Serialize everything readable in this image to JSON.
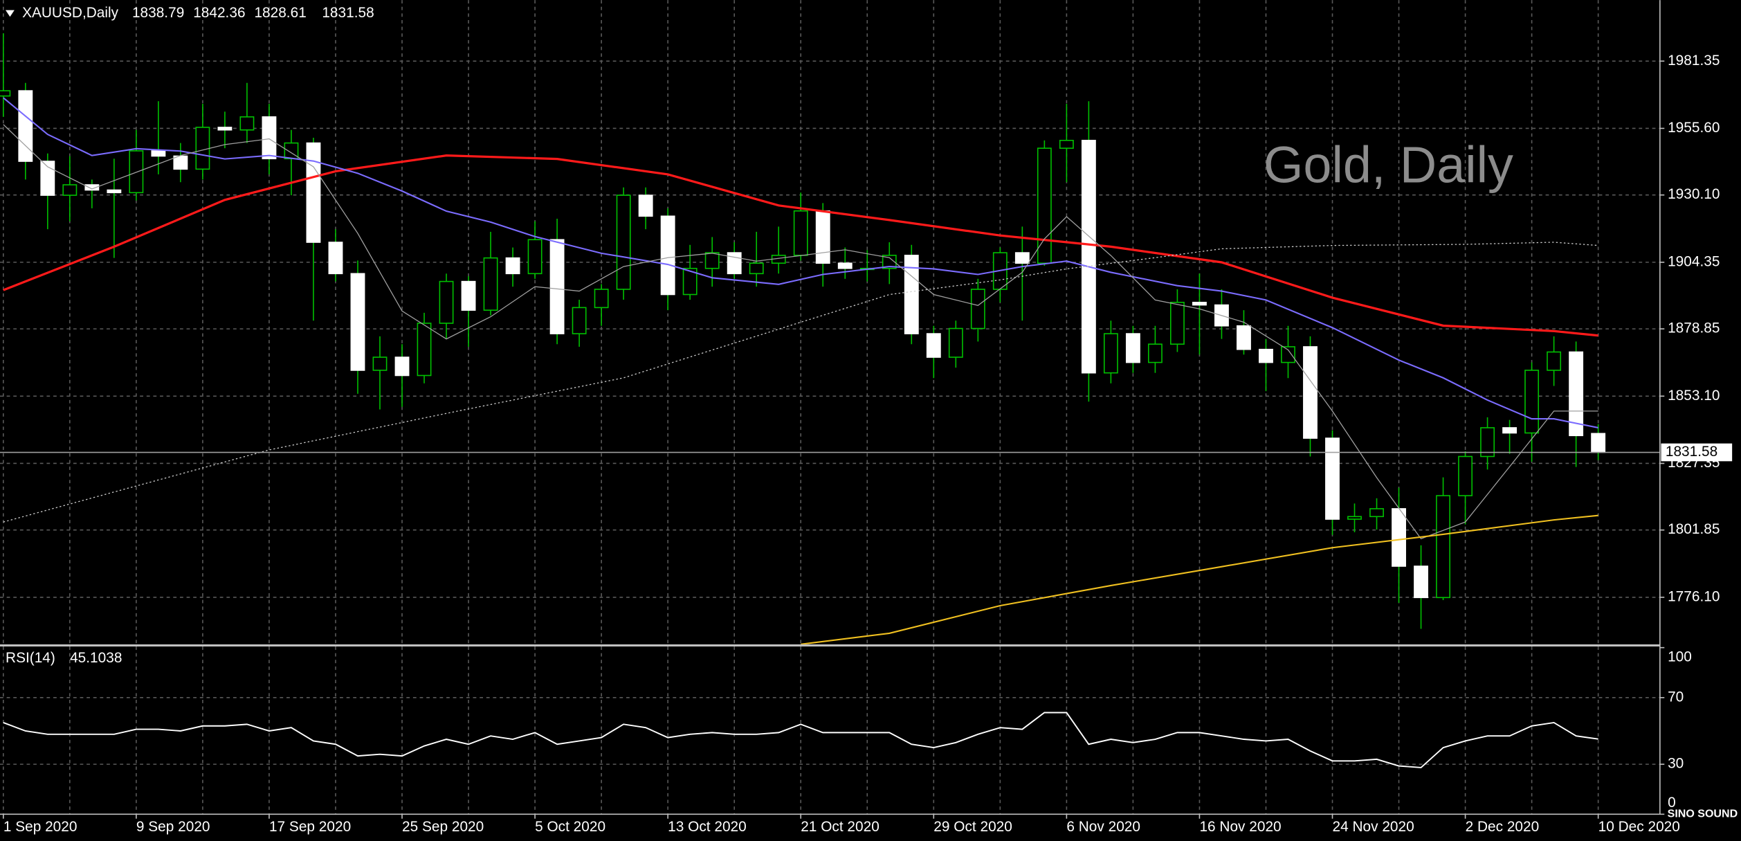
{
  "chart_data": {
    "type": "candlestick",
    "symbol": "XAUUSD,Daily",
    "watermark": "Gold, Daily",
    "logo": "SINO SOUND",
    "last_price": 1831.58,
    "categories": [
      "1 Sep 2020",
      null,
      null,
      null,
      null,
      null,
      "9 Sep 2020",
      null,
      null,
      null,
      null,
      null,
      "17 Sep 2020",
      null,
      null,
      null,
      null,
      null,
      "25 Sep 2020",
      null,
      null,
      null,
      null,
      null,
      "5 Oct 2020",
      null,
      null,
      null,
      null,
      null,
      "13 Oct 2020",
      null,
      null,
      null,
      null,
      null,
      "21 Oct 2020",
      null,
      null,
      null,
      null,
      null,
      "29 Oct 2020",
      null,
      null,
      null,
      null,
      null,
      "6 Nov 2020",
      null,
      null,
      null,
      null,
      null,
      "16 Nov 2020",
      null,
      null,
      null,
      null,
      null,
      "24 Nov 2020",
      null,
      null,
      null,
      null,
      null,
      "2 Dec 2020",
      null,
      null,
      null,
      null,
      null,
      "10 Dec 2020"
    ],
    "open": [
      1968,
      1970,
      1943,
      1930,
      1934,
      1932,
      1931,
      1947,
      1945,
      1940,
      1956,
      1955,
      1960,
      1944,
      1950,
      1912,
      1900,
      1863,
      1868,
      1861,
      1881,
      1897,
      1886,
      1906,
      1900,
      1913,
      1877,
      1887,
      1894,
      1930,
      1922,
      1892,
      1902,
      1908,
      1900,
      1904,
      1907,
      1924,
      1904,
      1902,
      1902,
      1907,
      1877,
      1868,
      1879,
      1894,
      1908,
      1904,
      1948,
      1951,
      1862,
      1877,
      1866,
      1873,
      1889,
      1888,
      1880,
      1871,
      1866,
      1872,
      1837,
      1806,
      1807,
      1810,
      1788,
      1776,
      1815,
      1830,
      1841,
      1839,
      1863,
      1870,
      1838.79
    ],
    "high": [
      1992,
      1973,
      1946,
      1945,
      1936,
      1944,
      1955,
      1966,
      1950,
      1965,
      1962,
      1973,
      1965,
      1955,
      1952,
      1917,
      1905,
      1876,
      1873,
      1885,
      1900,
      1899,
      1916,
      1910,
      1920,
      1921,
      1890,
      1896,
      1933,
      1933,
      1925,
      1911,
      1914,
      1912,
      1916,
      1918,
      1931,
      1927,
      1910,
      1909,
      1912,
      1911,
      1880,
      1882,
      1898,
      1910,
      1918,
      1951,
      1965,
      1966,
      1882,
      1880,
      1880,
      1894,
      1900,
      1894,
      1886,
      1875,
      1880,
      1876,
      1840,
      1812,
      1814,
      1818,
      1796,
      1822,
      1832,
      1845,
      1844,
      1866,
      1876,
      1874,
      1842.36
    ],
    "low": [
      1960,
      1936,
      1917,
      1920,
      1925,
      1906,
      1928,
      1938,
      1935,
      1936,
      1948,
      1950,
      1938,
      1930,
      1882,
      1897,
      1854,
      1848,
      1849,
      1858,
      1875,
      1872,
      1884,
      1895,
      1898,
      1873,
      1872,
      1880,
      1890,
      1917,
      1886,
      1890,
      1895,
      1898,
      1895,
      1900,
      1905,
      1895,
      1898,
      1897,
      1896,
      1873,
      1860,
      1864,
      1874,
      1889,
      1882,
      1903,
      1935,
      1851,
      1858,
      1862,
      1862,
      1870,
      1869,
      1875,
      1869,
      1855,
      1860,
      1830,
      1800,
      1801,
      1802,
      1774,
      1764,
      1775,
      1804,
      1825,
      1831,
      1828,
      1857,
      1826,
      1828.61
    ],
    "close": [
      1970,
      1943,
      1930,
      1934,
      1932,
      1931,
      1947,
      1945,
      1940,
      1956,
      1955,
      1960,
      1944,
      1950,
      1912,
      1900,
      1863,
      1868,
      1861,
      1881,
      1897,
      1886,
      1906,
      1900,
      1913,
      1877,
      1887,
      1894,
      1930,
      1922,
      1892,
      1902,
      1908,
      1900,
      1904,
      1907,
      1924,
      1904,
      1902,
      1902,
      1907,
      1877,
      1868,
      1879,
      1894,
      1908,
      1904,
      1948,
      1951,
      1862,
      1877,
      1866,
      1873,
      1889,
      1888,
      1880,
      1871,
      1866,
      1872,
      1837,
      1806,
      1807,
      1810,
      1788,
      1776,
      1815,
      1830,
      1841,
      1839,
      1863,
      1870,
      1838,
      1831.58
    ],
    "up_color": "#000000",
    "down_color": "#ffffff",
    "wick_color": "#00c000",
    "ylim": [
      1758.1,
      2004.7
    ],
    "yticks": [
      {
        "value": 1776.1,
        "label": "1776.10"
      },
      1801.85,
      1827.35,
      {
        "value": 1853.1,
        "label": "1853.10"
      },
      1878.85,
      1904.35,
      {
        "value": 1930.1,
        "label": "1930.10"
      },
      {
        "value": 1955.6,
        "label": "1955.60"
      },
      1981.35
    ],
    "grid": true,
    "overlays": [
      {
        "color": "#ff1a1a",
        "width": 2,
        "dash": "none",
        "x": [
          0,
          5,
          10,
          15,
          20,
          25,
          30,
          35,
          40,
          45,
          50,
          55,
          60,
          65,
          70,
          72
        ],
        "values": [
          1893.7,
          1910.3,
          1928.2,
          1939.2,
          1945.2,
          1943.9,
          1938.0,
          1926.1,
          1920.5,
          1914.6,
          1910.3,
          1904.3,
          1890.8,
          1880.1,
          1878.0,
          1876.3
        ]
      },
      {
        "color": "#7b6cff",
        "width": 1.3,
        "dash": "none",
        "x": [
          0,
          2,
          4,
          6,
          8,
          10,
          12,
          14,
          16,
          18,
          20,
          22,
          24,
          27,
          30,
          32,
          35,
          37,
          40,
          42,
          44,
          46,
          48,
          50,
          53,
          55,
          57,
          60,
          63,
          65,
          67,
          69,
          70,
          72
        ],
        "values": [
          1967.3,
          1953.3,
          1945.2,
          1947.8,
          1946.9,
          1943.9,
          1945.2,
          1943.1,
          1938.4,
          1931.6,
          1923.9,
          1919.7,
          1914.2,
          1907.8,
          1903.5,
          1898.4,
          1895.9,
          1899.7,
          1902.7,
          1901.8,
          1899.7,
          1902.7,
          1904.8,
          1900.5,
          1895.4,
          1893.3,
          1889.9,
          1879.3,
          1866.9,
          1860.1,
          1851.6,
          1844.4,
          1844.4,
          1841.0
        ]
      },
      {
        "color": "#a0a0a0",
        "width": 0.8,
        "dash": "none",
        "x": [
          0,
          2,
          4,
          6,
          8,
          10,
          12,
          14,
          16,
          18,
          20,
          22,
          24,
          26,
          28,
          30,
          32,
          34,
          36,
          38,
          40,
          42,
          44,
          46,
          47,
          48,
          50,
          52,
          54,
          56,
          58,
          60,
          62,
          64,
          66,
          68,
          70,
          72
        ],
        "values": [
          1957.1,
          1940.9,
          1932.4,
          1938.8,
          1945.2,
          1949.4,
          1951.6,
          1940.9,
          1915.4,
          1885.7,
          1875.0,
          1883.5,
          1895.0,
          1893.3,
          1902.7,
          1906.1,
          1907.8,
          1904.8,
          1906.9,
          1909.1,
          1906.1,
          1892.0,
          1887.8,
          1900.5,
          1913.3,
          1921.8,
          1906.9,
          1889.9,
          1886.5,
          1881.4,
          1870.8,
          1847.4,
          1821.9,
          1798.5,
          1804.9,
          1826.1,
          1847.4,
          1847.4
        ]
      },
      {
        "color": "#cfcfcf",
        "width": 0.8,
        "dash": "1.5 2",
        "x": [
          0,
          12,
          20,
          28,
          36,
          40,
          45,
          48,
          52,
          55,
          60,
          66,
          70,
          72
        ],
        "values": [
          1804.9,
          1832.5,
          1846.5,
          1860.1,
          1881.4,
          1892.0,
          1897.6,
          1901.8,
          1906.1,
          1909.5,
          1910.8,
          1911.2,
          1912.0,
          1910.8
        ]
      },
      {
        "color": "#f0c020",
        "width": 1.3,
        "dash": "none",
        "x": [
          36,
          40,
          45,
          50,
          55,
          60,
          65,
          70,
          72
        ],
        "values": [
          1758.1,
          1762.3,
          1772.9,
          1780.6,
          1787.8,
          1795.1,
          1800.2,
          1805.7,
          1807.4
        ]
      }
    ],
    "rsi": {
      "name": "RSI(14)",
      "color": "#ffffff",
      "ylim": [
        0,
        100
      ],
      "yticks": [
        0,
        30,
        70,
        100
      ],
      "levels": [
        30,
        70
      ],
      "values": [
        55,
        50,
        48,
        48,
        48,
        48,
        51,
        51,
        50,
        53,
        53,
        54,
        50,
        52,
        44,
        42,
        35,
        36,
        35,
        41,
        45,
        42,
        47,
        45,
        49,
        42,
        44,
        46,
        54,
        52,
        46,
        48,
        49,
        48,
        48,
        49,
        54,
        49,
        49,
        49,
        49,
        42,
        40,
        43,
        48,
        52,
        51,
        61,
        61,
        42,
        45,
        43,
        45,
        49,
        49,
        47,
        45,
        44,
        45,
        38,
        32,
        32,
        33,
        29,
        28,
        40,
        44,
        47,
        47,
        53,
        55,
        47,
        45.1038
      ]
    }
  }
}
